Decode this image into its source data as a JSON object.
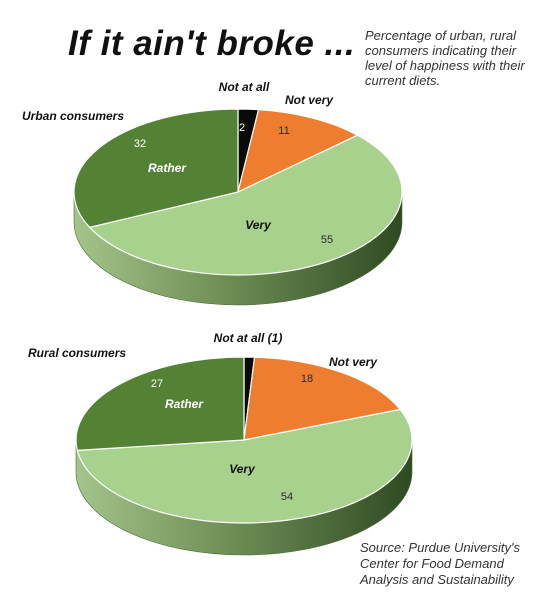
{
  "title": "If it ain't broke ...",
  "subtitle": "Percentage of urban, rural consumers indicating their level of happiness with their current diets.",
  "source": "Source: Purdue University's Center for Food Demand Analysis and Sustainability",
  "colors": {
    "not_at_all": "#0a0a0a",
    "not_very": "#ef7d30",
    "very": "#a9d18e",
    "rather": "#548235"
  },
  "chart_data": [
    {
      "type": "pie",
      "name": "Urban consumers",
      "slices": [
        {
          "label": "Not at all",
          "value": 2,
          "value_label": "2",
          "color_key": "not_at_all"
        },
        {
          "label": "Not very",
          "value": 11,
          "value_label": "11",
          "color_key": "not_very"
        },
        {
          "label": "Very",
          "value": 55,
          "value_label": "55",
          "color_key": "very"
        },
        {
          "label": "Rather",
          "value": 32,
          "value_label": "32",
          "color_key": "rather"
        }
      ]
    },
    {
      "type": "pie",
      "name": "Rural consumers",
      "slices": [
        {
          "label": "Not at all (1)",
          "value": 1,
          "value_label": "",
          "color_key": "not_at_all"
        },
        {
          "label": "Not very",
          "value": 18,
          "value_label": "18",
          "color_key": "not_very"
        },
        {
          "label": "Very",
          "value": 54,
          "value_label": "54",
          "color_key": "very"
        },
        {
          "label": "Rather",
          "value": 27,
          "value_label": "27",
          "color_key": "rather"
        }
      ]
    }
  ]
}
